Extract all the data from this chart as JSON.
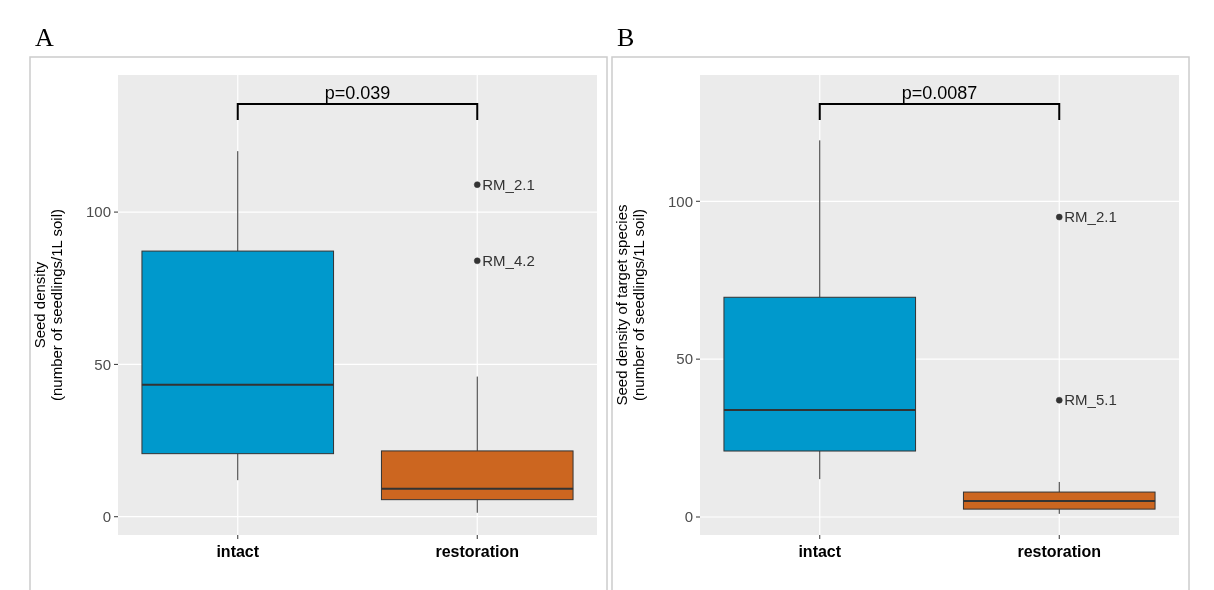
{
  "chart_data": [
    {
      "type": "box",
      "title": "A",
      "ylabel": "Seed density\n(number of seedlings/1L soil)",
      "categories": [
        "intact",
        "restoration"
      ],
      "colors": [
        "#0099cc",
        "#cc6620"
      ],
      "boxes": [
        {
          "low": 12,
          "q1": 20.7,
          "median": 43.3,
          "q3": 87.2,
          "high": 120
        },
        {
          "low": 1.3,
          "q1": 5.6,
          "median": 9.2,
          "q3": 21.6,
          "high": 46,
          "outliers": [
            109,
            84
          ]
        }
      ],
      "ylim": [
        -6,
        145
      ],
      "yticks": [
        0,
        50,
        100
      ],
      "grid": true,
      "annotations": [
        "p=0.039",
        "RM_2.1",
        "RM_4.2"
      ]
    },
    {
      "type": "box",
      "title": "B",
      "ylabel": "Seed density of target species\n(number of seedlings/1L soil)",
      "categories": [
        "intact",
        "restoration"
      ],
      "colors": [
        "#0099cc",
        "#cc6620"
      ],
      "boxes": [
        {
          "low": 12,
          "q1": 20.9,
          "median": 33.9,
          "q3": 69.6,
          "high": 119.3
        },
        {
          "low": 1,
          "q1": 2.5,
          "median": 5.1,
          "q3": 7.9,
          "high": 11.1,
          "outliers": [
            95,
            37
          ]
        }
      ],
      "ylim": [
        -5.7,
        140
      ],
      "yticks": [
        0,
        50,
        100
      ],
      "grid": true,
      "annotations": [
        "p=0.0087",
        "RM_2.1",
        "RM_5.1"
      ]
    }
  ]
}
